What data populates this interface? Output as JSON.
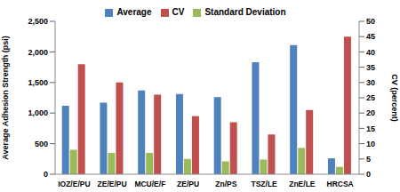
{
  "chart_data": {
    "type": "bar",
    "categories": [
      "IOZ/E/PU",
      "ZE/E/PU",
      "MCU/E/F",
      "ZE/PU",
      "Zn/PS",
      "TSZ/LE",
      "ZnE/LE",
      "HRCSA"
    ],
    "y_label": "Average Adhesion Strength (psi)",
    "y2_label": "CV (percent)",
    "ylim": [
      0,
      2500
    ],
    "yticks": [
      0,
      500,
      {
        "value": 1000,
        "label": "1,000"
      },
      {
        "value": 1500,
        "label": "1,500"
      },
      {
        "value": 2000,
        "label": "2,000"
      },
      {
        "value": 2500,
        "label": "2,500"
      }
    ],
    "y2lim": [
      0,
      50
    ],
    "y2ticks": [
      0,
      5,
      10,
      15,
      20,
      25,
      30,
      35,
      40,
      45,
      50
    ],
    "grid": false,
    "legend": "top",
    "series": [
      {
        "name": "Average",
        "color": "#4f81bd",
        "values": [
          1120,
          1170,
          1370,
          1310,
          1260,
          1830,
          2110,
          260
        ]
      },
      {
        "name": "Standard Deviation",
        "color": "#9bbb59",
        "values": [
          400,
          350,
          350,
          250,
          210,
          240,
          430,
          120
        ]
      },
      {
        "name": "CV",
        "color": "#c0504d",
        "axis": "y2",
        "values": [
          36,
          30,
          26,
          19,
          17,
          13,
          21,
          45
        ]
      }
    ]
  }
}
